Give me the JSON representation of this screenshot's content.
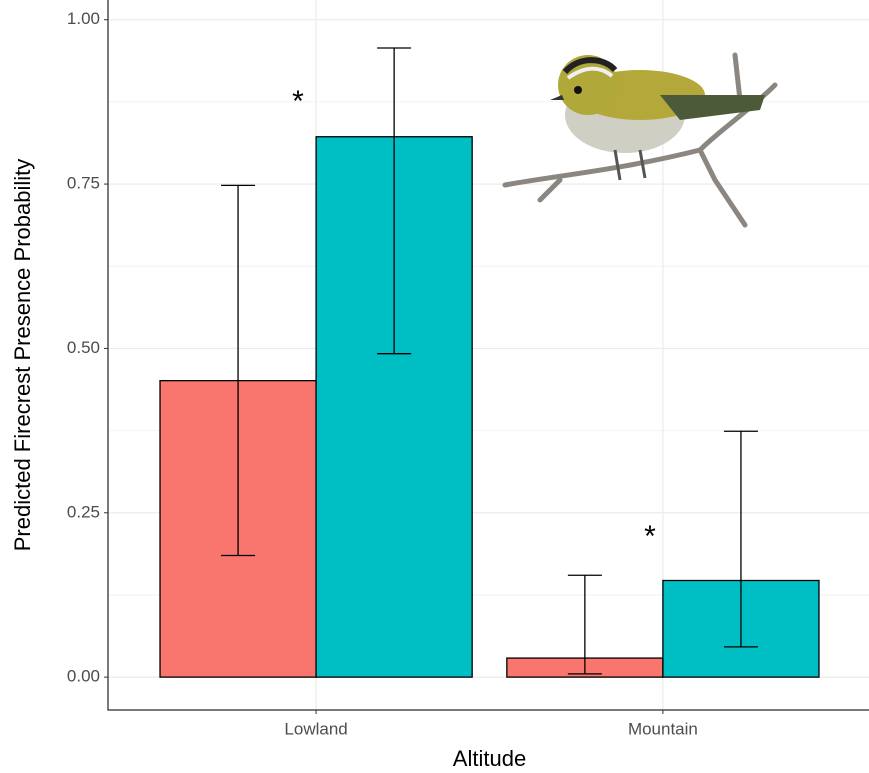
{
  "chart_data": {
    "type": "bar",
    "x_label": "Altitude",
    "y_label": "Predicted Firecrest Presence Probability",
    "categories": [
      "Lowland",
      "Mountain"
    ],
    "series": [
      {
        "color": "#f8766d",
        "values": [
          0.451,
          0.029
        ],
        "lower": [
          0.185,
          0.005
        ],
        "upper": [
          0.748,
          0.155
        ]
      },
      {
        "color": "#00bfc4",
        "values": [
          0.822,
          0.147
        ],
        "lower": [
          0.492,
          0.046
        ],
        "upper": [
          0.957,
          0.374
        ]
      }
    ],
    "annotations": [
      "*",
      "*"
    ],
    "ylim": [
      -0.05,
      1.03
    ],
    "yticks": [
      {
        "value": 0,
        "label": "0.00"
      },
      {
        "value": 0.25,
        "label": "0.25"
      },
      {
        "value": 0.5,
        "label": "0.50"
      },
      {
        "value": 0.75,
        "label": "0.75"
      },
      {
        "value": 1,
        "label": "1.00"
      }
    ],
    "grid": true
  }
}
